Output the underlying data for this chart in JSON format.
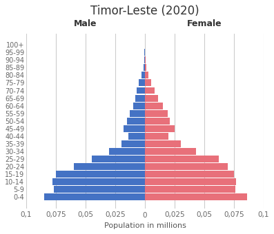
{
  "title": "Timor-Leste (2020)",
  "age_groups": [
    "0-4",
    "5-9",
    "10-14",
    "15-19",
    "20-24",
    "25-29",
    "30-34",
    "35-39",
    "40-44",
    "45-49",
    "50-54",
    "55-59",
    "60-64",
    "65-69",
    "70-74",
    "75-79",
    "80-84",
    "85-89",
    "90-94",
    "95-99",
    "100+"
  ],
  "male": [
    0.085,
    0.077,
    0.078,
    0.075,
    0.06,
    0.045,
    0.03,
    0.02,
    0.014,
    0.018,
    0.015,
    0.013,
    0.01,
    0.008,
    0.007,
    0.005,
    0.003,
    0.001,
    0.0008,
    0.0003,
    0.0001
  ],
  "female": [
    0.086,
    0.076,
    0.077,
    0.075,
    0.07,
    0.062,
    0.043,
    0.03,
    0.02,
    0.025,
    0.021,
    0.019,
    0.015,
    0.011,
    0.008,
    0.005,
    0.003,
    0.001,
    0.0007,
    0.0003,
    0.0001
  ],
  "male_color": "#4472C4",
  "female_color": "#E8707A",
  "xlim": 0.1,
  "xlabel": "Population in millions",
  "male_label": "Male",
  "female_label": "Female",
  "grid_color": "#CCCCCC",
  "background_color": "#FFFFFF",
  "xticks": [
    -0.1,
    -0.075,
    -0.05,
    -0.025,
    0,
    0.025,
    0.05,
    0.075,
    0.1
  ],
  "xtick_labels": [
    "0,1",
    "0,075",
    "0,05",
    "0,025",
    "0",
    "0,025",
    "0,05",
    "0,075",
    "0,1"
  ]
}
